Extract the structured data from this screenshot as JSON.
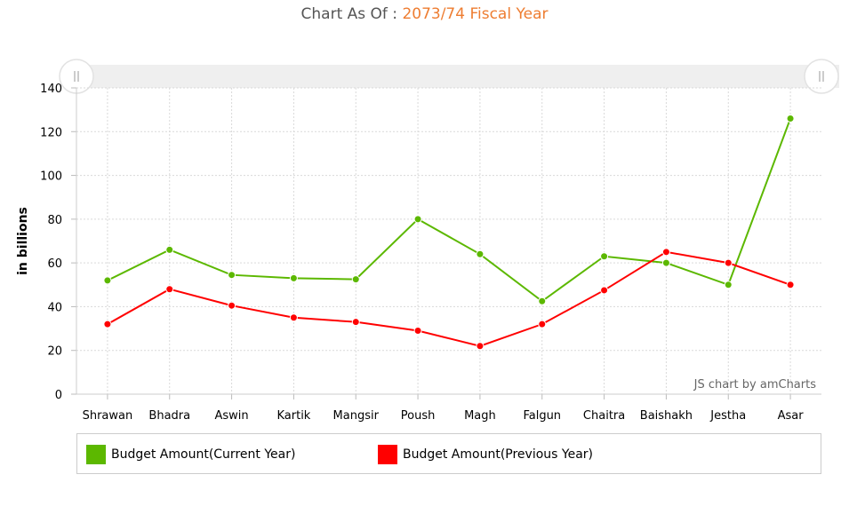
{
  "title": {
    "prefix": "Chart As Of :",
    "value": "2073/74 Fiscal Year"
  },
  "credit": "JS chart by amCharts",
  "chart_data": {
    "type": "line",
    "categories": [
      "Shrawan",
      "Bhadra",
      "Aswin",
      "Kartik",
      "Mangsir",
      "Poush",
      "Magh",
      "Falgun",
      "Chaitra",
      "Baishakh",
      "Jestha",
      "Asar"
    ],
    "ylabel": "in billions",
    "ylim": [
      0,
      140
    ],
    "yticks": [
      0,
      20,
      40,
      60,
      80,
      100,
      120,
      140
    ],
    "grid": true,
    "legend_position": "bottom",
    "series": [
      {
        "name": "Budget Amount(Current Year)",
        "color": "#5cb800",
        "values": [
          52,
          66,
          54.5,
          53,
          52.5,
          80,
          64,
          42.5,
          63,
          60,
          50,
          126
        ]
      },
      {
        "name": "Budget Amount(Previous Year)",
        "color": "#ff0000",
        "values": [
          32,
          48,
          40.5,
          35,
          33,
          29,
          22,
          32,
          47.5,
          65,
          60,
          50
        ]
      }
    ]
  }
}
